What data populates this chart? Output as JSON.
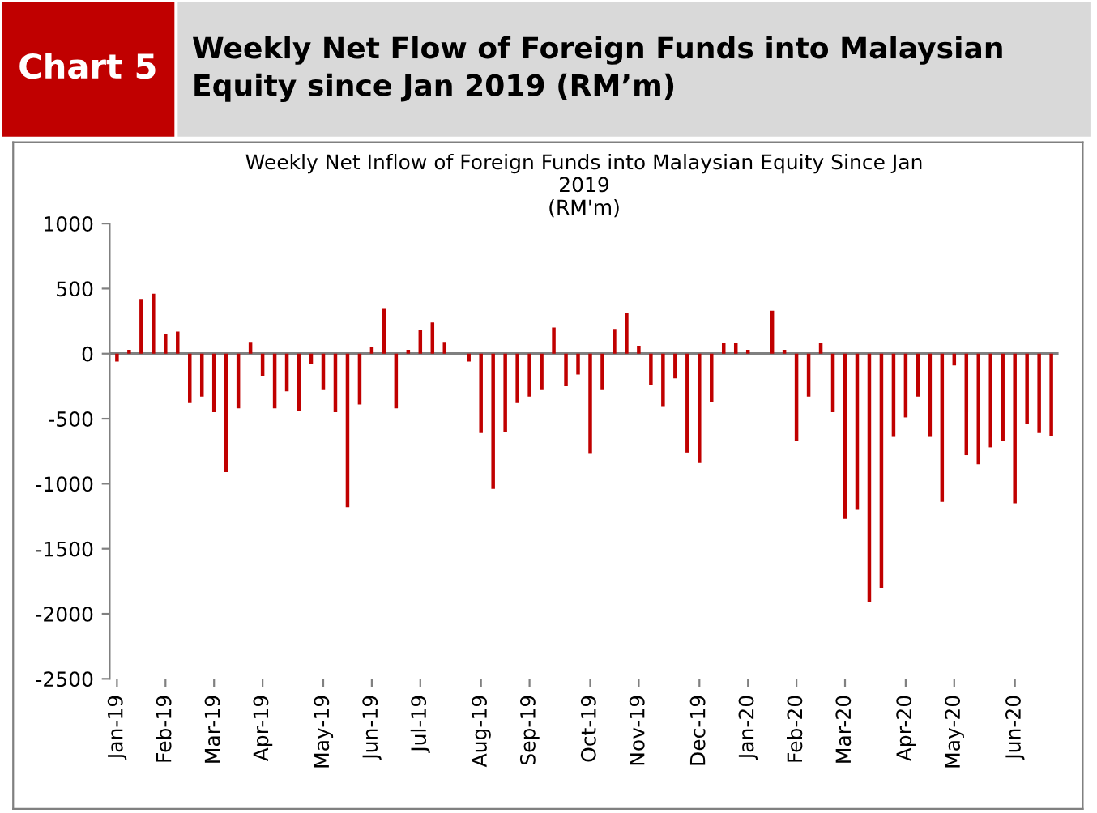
{
  "chart_data": {
    "type": "bar",
    "title": "Weekly Net Flow of Foreign Funds into Malaysian Equity since Jan 2019 (RM’m)",
    "subtitle": "Weekly Net Inflow of Foreign Funds into Malaysian Equity Since Jan\n2019\n(RM'm)",
    "annotations": [
      "Chart 5"
    ],
    "categories": [
      "Jan-19",
      null,
      null,
      null,
      "Feb-19",
      null,
      null,
      null,
      "Mar-19",
      null,
      null,
      null,
      "Apr-19",
      null,
      null,
      null,
      null,
      "May-19",
      null,
      null,
      null,
      "Jun-19",
      null,
      null,
      null,
      "Jul-19",
      null,
      null,
      null,
      null,
      "Aug-19",
      null,
      null,
      null,
      "Sep-19",
      null,
      null,
      null,
      null,
      "Oct-19",
      null,
      null,
      null,
      "Nov-19",
      null,
      null,
      null,
      null,
      "Dec-19",
      null,
      null,
      null,
      "Jan-20",
      null,
      null,
      null,
      "Feb-20",
      null,
      null,
      null,
      "Mar-20",
      null,
      null,
      null,
      null,
      "Apr-20",
      null,
      null,
      null,
      "May-20",
      null,
      null,
      null,
      null,
      "Jun-20",
      null,
      null,
      null
    ],
    "values": [
      -60,
      30,
      420,
      460,
      150,
      170,
      -380,
      -330,
      -450,
      -910,
      -420,
      90,
      -170,
      -420,
      -290,
      -440,
      -80,
      -280,
      -450,
      -1180,
      -390,
      50,
      350,
      -420,
      30,
      180,
      240,
      90,
      0,
      -60,
      -610,
      -1040,
      -600,
      -380,
      -330,
      -280,
      200,
      -250,
      -160,
      -770,
      -280,
      190,
      310,
      60,
      -240,
      -410,
      -190,
      -760,
      -840,
      -370,
      80,
      80,
      30,
      0,
      330,
      30,
      -670,
      -330,
      80,
      -450,
      -1270,
      -1200,
      -1910,
      -1800,
      -640,
      -490,
      -330,
      -640,
      -1140,
      -90,
      -780,
      -850,
      -720,
      -670,
      -1150,
      -540,
      -610,
      -630
    ],
    "color": "#c00000",
    "ylim": [
      -2500,
      1000
    ],
    "yticks": [
      -2500,
      -2000,
      -1500,
      -1000,
      -500,
      0,
      500,
      1000
    ]
  }
}
